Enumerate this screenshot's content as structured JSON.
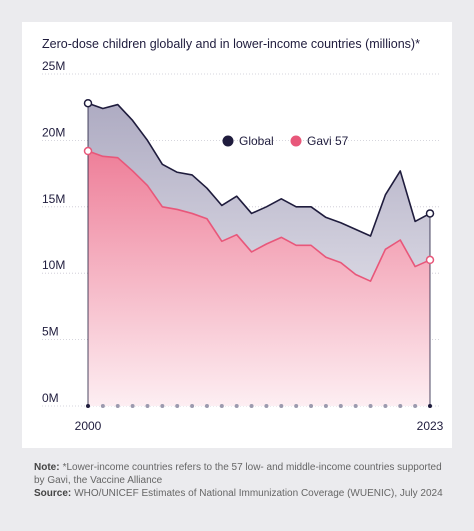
{
  "chart_data": {
    "type": "area-line",
    "title": "Zero-dose children globally and in lower-income countries (millions)*",
    "x": [
      2000,
      2001,
      2002,
      2003,
      2004,
      2005,
      2006,
      2007,
      2008,
      2009,
      2010,
      2011,
      2012,
      2013,
      2014,
      2015,
      2016,
      2017,
      2018,
      2019,
      2020,
      2021,
      2022,
      2023
    ],
    "series": [
      {
        "name": "Global",
        "color": "#1f1c3d",
        "values": [
          22.8,
          22.4,
          22.7,
          21.5,
          20.0,
          18.2,
          17.6,
          17.4,
          16.4,
          15.1,
          15.8,
          14.5,
          15.0,
          15.6,
          15.0,
          15.0,
          14.2,
          13.8,
          13.3,
          12.8,
          15.9,
          17.7,
          13.9,
          14.5
        ]
      },
      {
        "name": "Gavi 57",
        "color": "#e8577a",
        "values": [
          19.2,
          18.8,
          18.7,
          17.7,
          16.6,
          15.0,
          14.8,
          14.5,
          14.1,
          12.4,
          12.9,
          11.6,
          12.2,
          12.7,
          12.1,
          12.1,
          11.2,
          10.8,
          9.9,
          9.4,
          11.8,
          12.5,
          10.5,
          11.0
        ]
      }
    ],
    "ylim": [
      0,
      25
    ],
    "yticks": [
      {
        "value": 0,
        "label": "0M"
      },
      {
        "value": 5,
        "label": "5M"
      },
      {
        "value": 10,
        "label": "10M"
      },
      {
        "value": 15,
        "label": "15M"
      },
      {
        "value": 20,
        "label": "20M"
      },
      {
        "value": 25,
        "label": "25M"
      }
    ],
    "xlim": [
      2000,
      2023
    ],
    "xticks": [
      2000,
      2023
    ],
    "grid": true,
    "notes": [
      {
        "label": "Note:",
        "text": "*Lower-income countries refers to the 57 low- and middle-income countries supported by Gavi, the Vaccine Alliance"
      },
      {
        "label": "Source:",
        "text": "WHO/UNICEF Estimates of National Immunization Coverage (WUENIC), July 2024"
      }
    ]
  }
}
